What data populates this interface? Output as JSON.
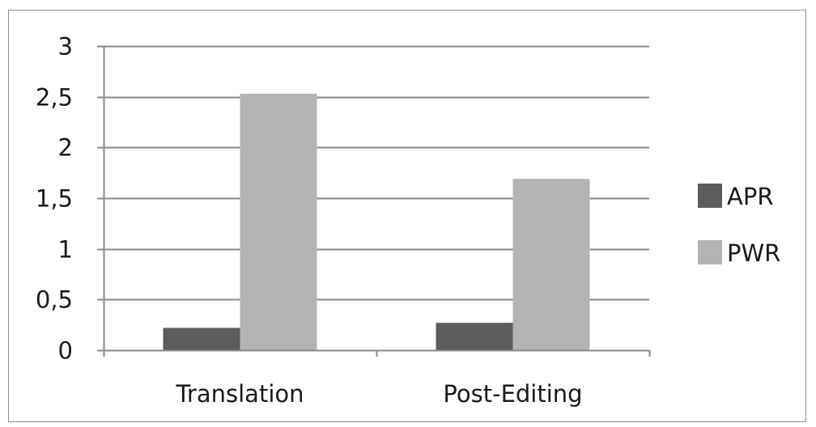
{
  "chart_data": {
    "type": "bar",
    "categories": [
      "Translation",
      "Post-Editing"
    ],
    "series": [
      {
        "name": "APR",
        "values": [
          0.22,
          0.27
        ],
        "color": "#5c5c5c"
      },
      {
        "name": "PWR",
        "values": [
          2.53,
          1.69
        ],
        "color": "#b3b3b3"
      }
    ],
    "ylim": [
      0,
      3
    ],
    "yticks": [
      "0",
      "0,5",
      "1",
      "1,5",
      "2",
      "2,5",
      "3"
    ],
    "ytick_values": [
      0,
      0.5,
      1,
      1.5,
      2,
      2.5,
      3
    ],
    "grid": true,
    "legend_position": "right"
  }
}
